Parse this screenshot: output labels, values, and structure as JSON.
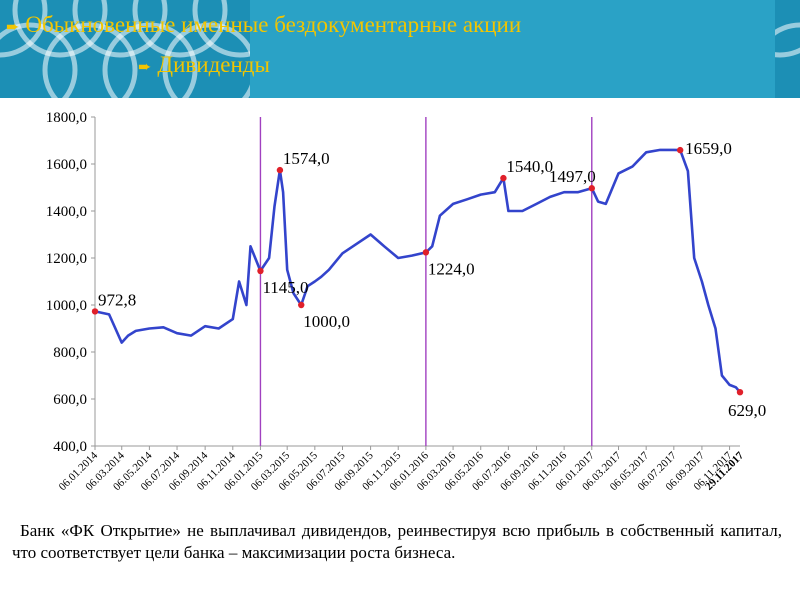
{
  "header": {
    "title_line1": "Обыкновенные именные бездокументарные акции",
    "title_line2": "Дивиденды",
    "accent_color": "#f2c500",
    "background_color": "#1c8fb5"
  },
  "chart_data": {
    "type": "line",
    "title": "",
    "xlabel": "",
    "ylabel": "",
    "ylim": [
      400,
      1800
    ],
    "yticks": [
      "400,0",
      "600,0",
      "800,0",
      "1000,0",
      "1200,0",
      "1400,0",
      "1600,0",
      "1800,0"
    ],
    "xticks": [
      "06.01.2014",
      "06.03.2014",
      "06.05.2014",
      "06.07.2014",
      "06.09.2014",
      "06.11.2014",
      "06.01.2015",
      "06.03.2015",
      "06.05.2015",
      "06.07.2015",
      "06.09.2015",
      "06.11.2015",
      "06.01.2016",
      "06.03.2016",
      "06.05.2016",
      "06.07.2016",
      "06.09.2016",
      "06.11.2016",
      "06.01.2017",
      "06.03.2017",
      "06.05.2017",
      "06.07.2017",
      "06.09.2017",
      "06.11.2017"
    ],
    "last_xtick": "29.11.2017",
    "grid": false,
    "line_color": "#3344cc",
    "marker_color": "#e0202a",
    "vline_color": "#a040c0",
    "vlines": [
      "06.01.2015",
      "06.01.2016",
      "06.01.2017"
    ],
    "series": [
      {
        "x": [
          "06.01.2014",
          "06.02.2014",
          "06.03.2014",
          "20.03.2014",
          "06.04.2014",
          "06.05.2014",
          "06.06.2014",
          "06.07.2014",
          "06.08.2014",
          "06.09.2014",
          "06.10.2014",
          "06.11.2014",
          "20.11.2014",
          "06.12.2014",
          "15.12.2014",
          "06.01.2015",
          "25.01.2015",
          "06.02.2015",
          "18.02.2015",
          "25.02.2015",
          "06.03.2015",
          "20.03.2015",
          "06.04.2015",
          "20.04.2015",
          "06.05.2015",
          "20.05.2015",
          "06.06.2015",
          "06.07.2015",
          "06.08.2015",
          "06.09.2015",
          "06.10.2015",
          "06.11.2015",
          "06.12.2015",
          "06.01.2016",
          "20.01.2016",
          "06.02.2016",
          "06.03.2016",
          "06.04.2016",
          "06.05.2016",
          "06.06.2016",
          "25.06.2016",
          "06.07.2016",
          "06.08.2016",
          "06.09.2016",
          "06.10.2016",
          "06.11.2016",
          "06.12.2016",
          "06.01.2017",
          "20.01.2017",
          "06.02.2017",
          "06.03.2017",
          "06.04.2017",
          "06.05.2017",
          "06.06.2017",
          "06.07.2017",
          "20.07.2017",
          "06.08.2017",
          "20.08.2017",
          "06.09.2017",
          "20.09.2017",
          "06.10.2017",
          "20.10.2017",
          "06.11.2017",
          "20.11.2017",
          "29.11.2017"
        ],
        "values": [
          972.8,
          960,
          840,
          870,
          890,
          900,
          905,
          880,
          870,
          910,
          900,
          940,
          1100,
          1000,
          1250,
          1145,
          1200,
          1420,
          1574,
          1480,
          1150,
          1050,
          1000,
          1080,
          1100,
          1120,
          1150,
          1220,
          1260,
          1300,
          1250,
          1200,
          1210,
          1224,
          1250,
          1380,
          1430,
          1450,
          1470,
          1480,
          1540,
          1400,
          1400,
          1430,
          1460,
          1480,
          1480,
          1497,
          1440,
          1430,
          1560,
          1590,
          1650,
          1660,
          1660,
          1659,
          1570,
          1200,
          1100,
          1000,
          900,
          700,
          660,
          650,
          629
        ],
        "labels": [
          {
            "x": "06.01.2014",
            "value": 972.8,
            "text": "972,8",
            "pos": "above-right"
          },
          {
            "x": "06.01.2015",
            "value": 1145,
            "text": "1145,0",
            "pos": "below-right"
          },
          {
            "x": "18.02.2015",
            "value": 1574,
            "text": "1574,0",
            "pos": "above-right"
          },
          {
            "x": "06.04.2015",
            "value": 1000,
            "text": "1000,0",
            "pos": "below-right"
          },
          {
            "x": "06.01.2016",
            "value": 1224,
            "text": "1224,0",
            "pos": "below-right"
          },
          {
            "x": "25.06.2016",
            "value": 1540,
            "text": "1540,0",
            "pos": "above-right"
          },
          {
            "x": "06.01.2017",
            "value": 1497,
            "text": "1497,0",
            "pos": "above-left"
          },
          {
            "x": "20.07.2017",
            "value": 1659,
            "text": "1659,0",
            "pos": "right"
          },
          {
            "x": "29.11.2017",
            "value": 629,
            "text": "629,0",
            "pos": "below"
          }
        ]
      }
    ]
  },
  "caption": "Банк «ФК Открытие» не выплачивал дивидендов, реинвестируя всю прибыль в собственный капитал, что соответствует цели банка – максимизации роста бизнеса."
}
